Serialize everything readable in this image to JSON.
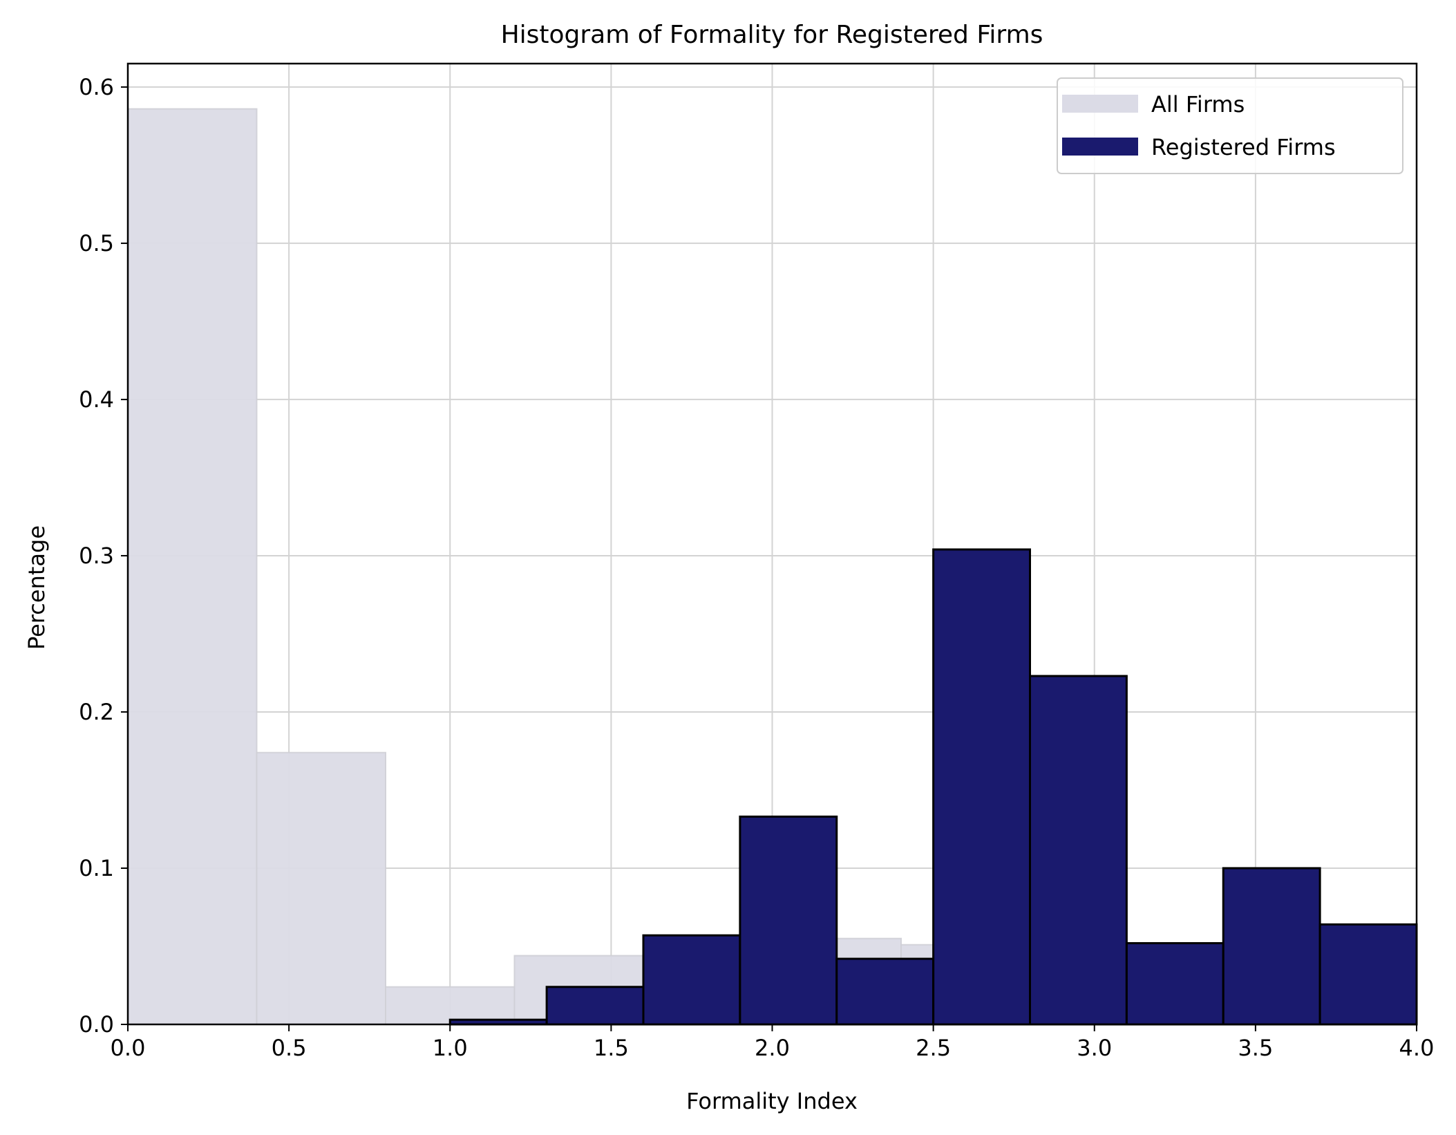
{
  "chart_data": {
    "type": "bar",
    "title": "Histogram of Formality for Registered Firms",
    "xlabel": "Formality Index",
    "ylabel": "Percentage",
    "xlim": [
      0,
      4
    ],
    "ylim": [
      0,
      0.615
    ],
    "grid": true,
    "legend_position": "top-right",
    "x_ticks": [
      {
        "value": 0.0,
        "label": "0.0"
      },
      {
        "value": 0.5,
        "label": "0.5"
      },
      {
        "value": 1.0,
        "label": "1.0"
      },
      {
        "value": 1.5,
        "label": "1.5"
      },
      {
        "value": 2.0,
        "label": "2.0"
      },
      {
        "value": 2.5,
        "label": "2.5"
      },
      {
        "value": 3.0,
        "label": "3.0"
      },
      {
        "value": 3.5,
        "label": "3.5"
      },
      {
        "value": 4.0,
        "label": "4.0"
      }
    ],
    "y_ticks": [
      {
        "value": 0.0,
        "label": "0.0"
      },
      {
        "value": 0.1,
        "label": "0.1"
      },
      {
        "value": 0.2,
        "label": "0.2"
      },
      {
        "value": 0.3,
        "label": "0.3"
      },
      {
        "value": 0.4,
        "label": "0.4"
      },
      {
        "value": 0.5,
        "label": "0.5"
      },
      {
        "value": 0.6,
        "label": "0.6"
      }
    ],
    "series": [
      {
        "name": "All Firms",
        "color": "#dbdbe6",
        "edge_color": "#cfcfd6",
        "bins": [
          {
            "x0": 0.0,
            "x1": 0.4,
            "value": 0.586
          },
          {
            "x0": 0.4,
            "x1": 0.8,
            "value": 0.174
          },
          {
            "x0": 0.8,
            "x1": 1.2,
            "value": 0.024
          },
          {
            "x0": 1.2,
            "x1": 1.6,
            "value": 0.044
          },
          {
            "x0": 1.6,
            "x1": 2.0,
            "value": 0.049
          },
          {
            "x0": 2.0,
            "x1": 2.4,
            "value": 0.055
          },
          {
            "x0": 2.4,
            "x1": 2.8,
            "value": 0.051
          },
          {
            "x0": 2.8,
            "x1": 3.2,
            "value": 0.006
          },
          {
            "x0": 3.2,
            "x1": 3.6,
            "value": 0.004
          },
          {
            "x0": 3.6,
            "x1": 4.0,
            "value": 0.003
          }
        ]
      },
      {
        "name": "Registered Firms",
        "color": "#1a1a6e",
        "edge_color": "#000000",
        "bins": [
          {
            "x0": 1.0,
            "x1": 1.3,
            "value": 0.003
          },
          {
            "x0": 1.3,
            "x1": 1.6,
            "value": 0.024
          },
          {
            "x0": 1.6,
            "x1": 1.9,
            "value": 0.057
          },
          {
            "x0": 1.9,
            "x1": 2.2,
            "value": 0.133
          },
          {
            "x0": 2.2,
            "x1": 2.5,
            "value": 0.042
          },
          {
            "x0": 2.5,
            "x1": 2.8,
            "value": 0.304
          },
          {
            "x0": 2.8,
            "x1": 3.1,
            "value": 0.223
          },
          {
            "x0": 3.1,
            "x1": 3.4,
            "value": 0.052
          },
          {
            "x0": 3.4,
            "x1": 3.7,
            "value": 0.1
          },
          {
            "x0": 3.7,
            "x1": 4.0,
            "value": 0.064
          }
        ]
      }
    ]
  }
}
